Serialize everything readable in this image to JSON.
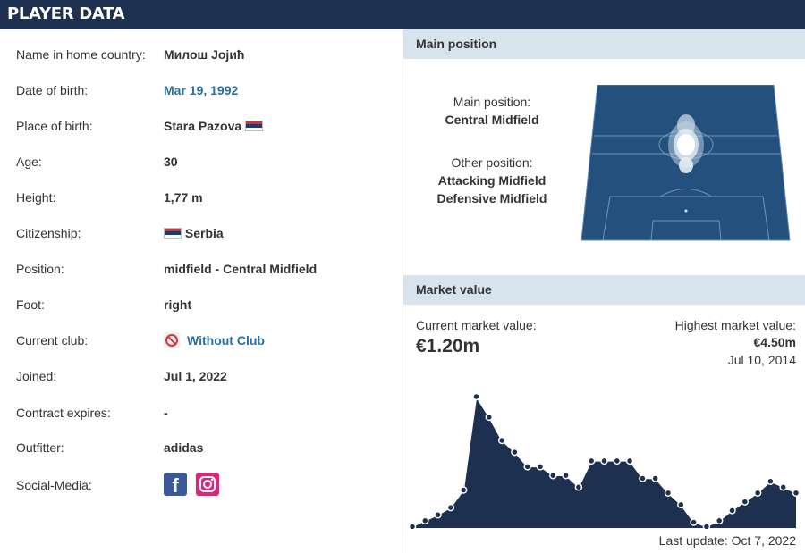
{
  "header": {
    "title": "PLAYER DATA"
  },
  "facts": [
    {
      "label": "Name in home country:",
      "value": "Милош Јојић"
    },
    {
      "label": "Date of birth:",
      "value": "Mar 19, 1992"
    },
    {
      "label": "Place of birth:",
      "value": "Stara Pazova"
    },
    {
      "label": "Age:",
      "value": "30"
    },
    {
      "label": "Height:",
      "value": "1,77 m"
    },
    {
      "label": "Citizenship:",
      "value": "Serbia"
    },
    {
      "label": "Position:",
      "value": "midfield - Central Midfield"
    },
    {
      "label": "Foot:",
      "value": "right"
    },
    {
      "label": "Current club:",
      "value": "Without Club"
    },
    {
      "label": "Joined:",
      "value": "Jul 1, 2022"
    },
    {
      "label": "Contract expires:",
      "value": "-"
    },
    {
      "label": "Outfitter:",
      "value": "adidas"
    },
    {
      "label": "Social-Media:",
      "value": ""
    }
  ],
  "main_position": {
    "title": "Main position",
    "main_label": "Main position:",
    "main_value": "Central Midfield",
    "other_label": "Other position:",
    "other_values": [
      "Attacking Midfield",
      "Defensive Midfield"
    ]
  },
  "market_value": {
    "title": "Market value",
    "current_label": "Current market value:",
    "current_value": "€1.20m",
    "highest_label": "Highest market value:",
    "highest_value": "€4.50m",
    "highest_date": "Jul 10, 2014",
    "last_update": "Last update: Oct 7, 2022"
  },
  "colors": {
    "header_bg": "#1d3050",
    "panel_head_bg": "#d7e4ee",
    "link": "#2a6fa0",
    "chart_fill": "#1d3050"
  },
  "chart_data": {
    "type": "area",
    "title": "",
    "xlabel": "",
    "ylabel": "",
    "series": [
      {
        "values": [
          0.05,
          0.25,
          0.45,
          0.7,
          1.3,
          4.5,
          3.8,
          3.0,
          2.6,
          2.1,
          2.1,
          1.8,
          1.8,
          1.4,
          2.3,
          2.3,
          2.3,
          2.3,
          1.7,
          1.7,
          1.2,
          0.8,
          0.2,
          0.05,
          0.25,
          0.6,
          0.9,
          1.2,
          1.6,
          1.4,
          1.2
        ]
      }
    ]
  },
  "social": [
    "facebook-icon",
    "instagram-icon"
  ]
}
